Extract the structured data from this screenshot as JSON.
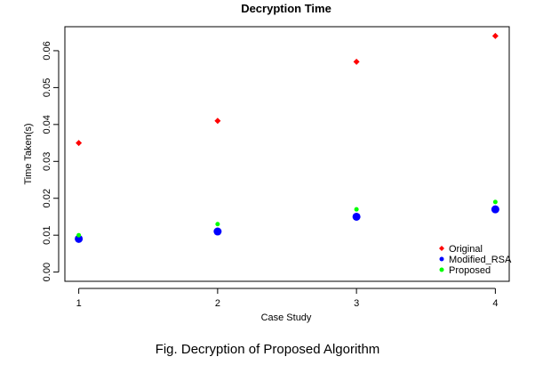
{
  "figure": {
    "caption": "Fig. Decryption of Proposed Algorithm"
  },
  "chart_data": {
    "type": "scatter",
    "title": "Decryption Time",
    "xlabel": "Case Study",
    "ylabel": "Time Taken(s)",
    "x": [
      1,
      2,
      3,
      4
    ],
    "x_ticks": [
      "1",
      "2",
      "3",
      "4"
    ],
    "y_ticks": [
      "0.00",
      "0.01",
      "0.02",
      "0.03",
      "0.04",
      "0.05",
      "0.06"
    ],
    "xlim": [
      0.9,
      4.1
    ],
    "ylim": [
      -0.0025,
      0.0665
    ],
    "grid": false,
    "legend_position": "bottom-right",
    "series": [
      {
        "name": "Original",
        "values": [
          0.035,
          0.041,
          0.057,
          0.064
        ],
        "color": "#ff0000",
        "marker": "diamond"
      },
      {
        "name": "Modified_RSA",
        "values": [
          0.009,
          0.011,
          0.015,
          0.017
        ],
        "color": "#0000ff",
        "marker": "circle"
      },
      {
        "name": "Proposed",
        "values": [
          0.01,
          0.013,
          0.017,
          0.019
        ],
        "color": "#00ff00",
        "marker": "circle"
      }
    ]
  }
}
